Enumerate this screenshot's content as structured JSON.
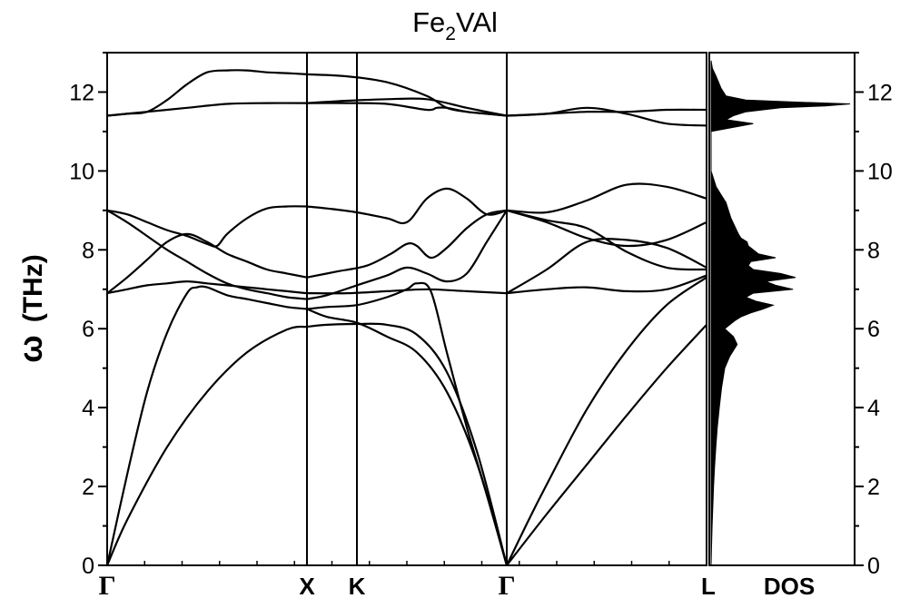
{
  "chart_data": {
    "type": "line",
    "title": {
      "main": "Fe",
      "sub": "2",
      "rest": "VAl"
    },
    "ylabel": {
      "symbol": "ω",
      "unit": "(THz)"
    },
    "ylim": [
      0,
      13
    ],
    "yticks": [
      0,
      2,
      4,
      6,
      8,
      10,
      12
    ],
    "ytick_labels": [
      "0",
      "2",
      "4",
      "6",
      "8",
      "10",
      "12"
    ],
    "xlim": [
      0,
      4.98
    ],
    "kpoints": [
      {
        "label": "Γ",
        "x": 0
      },
      {
        "label": "X",
        "x": 1.0
      },
      {
        "label": "K",
        "x": 1.25
      },
      {
        "label": "Γ",
        "x": 2.0
      },
      {
        "label": "L",
        "x": 3.0
      }
    ],
    "dos_label": "DOS",
    "series": [
      {
        "x": [
          0,
          0.1,
          0.3,
          0.5,
          0.7,
          0.9,
          1.0
        ],
        "y": [
          0,
          1.15,
          3.0,
          4.4,
          5.4,
          5.98,
          6.05
        ]
      },
      {
        "x": [
          0,
          0.1,
          0.2,
          0.3,
          0.4,
          0.45,
          0.5,
          0.6,
          0.7,
          0.8,
          0.9,
          1.0
        ],
        "y": [
          0,
          2.3,
          4.4,
          5.9,
          6.9,
          7.05,
          7.05,
          6.85,
          6.75,
          6.65,
          6.55,
          6.5
        ]
      },
      {
        "x": [
          0,
          0.1,
          0.2,
          0.3,
          0.4,
          0.5,
          0.6,
          0.7,
          0.8,
          0.9,
          1.0
        ],
        "y": [
          6.9,
          7.0,
          7.1,
          7.15,
          7.2,
          7.15,
          7.1,
          7.05,
          7.0,
          6.95,
          6.9
        ]
      },
      {
        "x": [
          0,
          0.1,
          0.2,
          0.3,
          0.4,
          0.5,
          0.6,
          0.7,
          0.8,
          0.9,
          1.0
        ],
        "y": [
          6.9,
          7.3,
          7.75,
          8.2,
          8.4,
          8.2,
          7.9,
          7.7,
          7.5,
          7.4,
          7.3
        ]
      },
      {
        "x": [
          0,
          0.1,
          0.2,
          0.3,
          0.4,
          0.5,
          0.6,
          0.7,
          0.8,
          0.9,
          1.0
        ],
        "y": [
          9.0,
          8.7,
          8.35,
          8.0,
          7.7,
          7.4,
          7.15,
          7.0,
          6.9,
          6.8,
          6.75
        ]
      },
      {
        "x": [
          0,
          0.1,
          0.2,
          0.3,
          0.4,
          0.5,
          0.55,
          0.6,
          0.7,
          0.8,
          0.9,
          1.0
        ],
        "y": [
          9.0,
          8.9,
          8.7,
          8.5,
          8.35,
          8.15,
          8.1,
          8.4,
          8.8,
          9.05,
          9.1,
          9.1
        ]
      },
      {
        "x": [
          0,
          0.2,
          0.4,
          0.6,
          0.8,
          1.0
        ],
        "y": [
          11.4,
          11.5,
          11.6,
          11.7,
          11.72,
          11.72
        ]
      },
      {
        "x": [
          0,
          0.1,
          0.2,
          0.3,
          0.4,
          0.5,
          0.6,
          0.7,
          0.8,
          0.9,
          1.0
        ],
        "y": [
          11.4,
          11.45,
          11.5,
          11.8,
          12.2,
          12.5,
          12.55,
          12.55,
          12.5,
          12.48,
          12.45
        ]
      },
      {
        "x": [
          1.0,
          1.1,
          1.25,
          1.4,
          1.55,
          1.7,
          1.85,
          2.0
        ],
        "y": [
          6.05,
          6.1,
          6.12,
          6.1,
          5.85,
          4.9,
          2.9,
          0
        ]
      },
      {
        "x": [
          1.0,
          1.1,
          1.25,
          1.4,
          1.55,
          1.7,
          1.85,
          2.0
        ],
        "y": [
          6.5,
          6.3,
          6.15,
          5.8,
          5.4,
          4.4,
          2.6,
          0
        ]
      },
      {
        "x": [
          1.0,
          1.1,
          1.25,
          1.4,
          1.5,
          1.55,
          1.62,
          1.7,
          1.8,
          1.9,
          2.0
        ],
        "y": [
          6.5,
          6.55,
          6.6,
          6.8,
          7.0,
          7.15,
          6.95,
          5.4,
          3.5,
          1.8,
          0
        ]
      },
      {
        "x": [
          1.0,
          1.2,
          1.4,
          1.6,
          1.8,
          2.0
        ],
        "y": [
          6.9,
          6.9,
          6.95,
          7.0,
          6.95,
          6.9
        ]
      },
      {
        "x": [
          1.0,
          1.1,
          1.25,
          1.4,
          1.5,
          1.6,
          1.7,
          1.8,
          1.9,
          2.0
        ],
        "y": [
          6.75,
          6.85,
          7.1,
          7.35,
          7.55,
          7.4,
          7.2,
          7.4,
          8.2,
          9.0
        ]
      },
      {
        "x": [
          1.0,
          1.15,
          1.3,
          1.42,
          1.5,
          1.55,
          1.62,
          1.7,
          1.8,
          1.9,
          2.0
        ],
        "y": [
          7.3,
          7.45,
          7.6,
          7.9,
          8.15,
          8.1,
          7.8,
          8.05,
          8.55,
          8.9,
          9.0
        ]
      },
      {
        "x": [
          1.0,
          1.1,
          1.25,
          1.4,
          1.5,
          1.6,
          1.7,
          1.8,
          1.9,
          2.0
        ],
        "y": [
          9.1,
          9.05,
          8.95,
          8.8,
          8.7,
          9.3,
          9.55,
          9.3,
          8.9,
          9.0
        ]
      },
      {
        "x": [
          1.0,
          1.2,
          1.4,
          1.6,
          1.8,
          2.0
        ],
        "y": [
          11.72,
          11.78,
          11.82,
          11.82,
          11.6,
          11.4
        ]
      },
      {
        "x": [
          1.0,
          1.2,
          1.4,
          1.6,
          1.7,
          1.8,
          1.9,
          2.0
        ],
        "y": [
          12.45,
          12.4,
          12.25,
          11.9,
          11.6,
          11.5,
          11.45,
          11.4
        ]
      },
      {
        "x": [
          1.0,
          1.2,
          1.4,
          1.6,
          1.65,
          1.7,
          1.8,
          1.9,
          2.0
        ],
        "y": [
          11.72,
          11.72,
          11.7,
          11.55,
          11.6,
          11.6,
          11.5,
          11.45,
          11.4
        ]
      },
      {
        "x": [
          2.0,
          2.2,
          2.4,
          2.6,
          2.8,
          3.0
        ],
        "y": [
          0,
          1.3,
          2.55,
          3.8,
          5.0,
          6.1
        ]
      },
      {
        "x": [
          2.0,
          2.1,
          2.2,
          2.4,
          2.6,
          2.8,
          3.0
        ],
        "y": [
          0,
          1.05,
          2.05,
          3.95,
          5.45,
          6.6,
          7.3
        ]
      },
      {
        "x": [
          2.0,
          2.2,
          2.4,
          2.6,
          2.8,
          3.0
        ],
        "y": [
          6.9,
          7.0,
          7.05,
          6.95,
          7.0,
          7.35
        ]
      },
      {
        "x": [
          2.0,
          2.2,
          2.4,
          2.6,
          2.8,
          3.0
        ],
        "y": [
          6.9,
          7.5,
          8.2,
          8.25,
          8.05,
          7.55
        ]
      },
      {
        "x": [
          2.0,
          2.2,
          2.4,
          2.6,
          2.8,
          3.0
        ],
        "y": [
          9.0,
          8.75,
          8.55,
          7.95,
          7.55,
          7.5
        ]
      },
      {
        "x": [
          2.0,
          2.2,
          2.4,
          2.6,
          2.8,
          3.0
        ],
        "y": [
          9.0,
          8.7,
          8.3,
          8.1,
          8.25,
          8.7
        ]
      },
      {
        "x": [
          2.0,
          2.2,
          2.4,
          2.6,
          2.8,
          3.0
        ],
        "y": [
          9.0,
          8.95,
          9.25,
          9.65,
          9.6,
          9.3
        ]
      },
      {
        "x": [
          2.0,
          2.2,
          2.4,
          2.6,
          2.8,
          3.0
        ],
        "y": [
          11.4,
          11.45,
          11.5,
          11.5,
          11.55,
          11.55
        ]
      },
      {
        "x": [
          2.0,
          2.2,
          2.4,
          2.6,
          2.8,
          3.0
        ],
        "y": [
          11.4,
          11.45,
          11.6,
          11.45,
          11.2,
          11.15
        ]
      }
    ],
    "dos": {
      "y": [
        0,
        0.5,
        1,
        1.5,
        2,
        2.5,
        3,
        3.5,
        4,
        4.5,
        5,
        5.3,
        5.6,
        5.8,
        6.0,
        6.1,
        6.2,
        6.3,
        6.4,
        6.5,
        6.6,
        6.7,
        6.8,
        6.9,
        7.0,
        7.1,
        7.2,
        7.3,
        7.4,
        7.5,
        7.6,
        7.7,
        7.8,
        7.9,
        8.0,
        8.1,
        8.2,
        8.3,
        8.4,
        8.6,
        8.8,
        9.0,
        9.2,
        9.4,
        9.6,
        10.0,
        11.0,
        11.2,
        11.3,
        11.4,
        11.5,
        11.6,
        11.65,
        11.7,
        11.75,
        11.8,
        11.9,
        12.1,
        12.4,
        12.6,
        12.8
      ],
      "value": [
        0,
        0.02,
        0.04,
        0.07,
        0.1,
        0.14,
        0.19,
        0.25,
        0.33,
        0.42,
        0.55,
        0.75,
        1.05,
        0.9,
        0.55,
        0.75,
        0.95,
        1.2,
        1.6,
        2.1,
        2.5,
        1.8,
        1.4,
        1.7,
        3.3,
        2.6,
        2.2,
        3.4,
        2.8,
        1.7,
        1.5,
        1.6,
        2.6,
        1.9,
        1.7,
        1.5,
        1.45,
        1.2,
        1.1,
        0.95,
        0.8,
        0.7,
        0.6,
        0.4,
        0.2,
        0,
        0,
        1.7,
        0.6,
        0.9,
        1.4,
        2.8,
        4.6,
        5.6,
        3.2,
        1.4,
        0.6,
        0.4,
        0.2,
        0.05,
        0
      ],
      "max": 5.6
    }
  }
}
